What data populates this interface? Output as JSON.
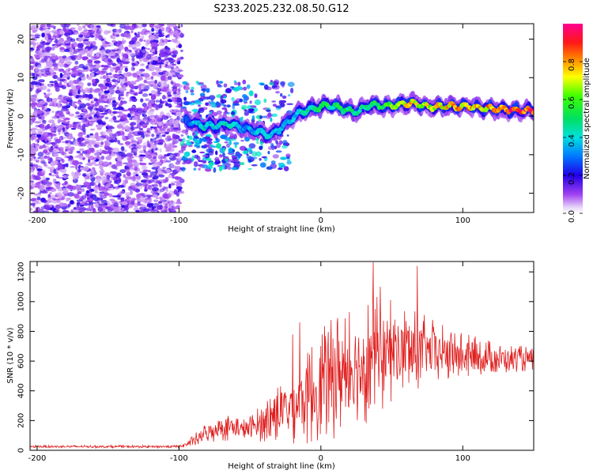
{
  "figure": {
    "title": "S233.2025.232.08.50.G12"
  },
  "chart_data": [
    {
      "type": "heatmap",
      "xlabel": "Height of straight line (km)",
      "ylabel": "Frequency (Hz)",
      "xlim": [
        -205,
        150
      ],
      "ylim": [
        -25,
        24
      ],
      "xticks": [
        -200,
        -100,
        0,
        100
      ],
      "yticks": [
        -20,
        -10,
        0,
        10,
        20
      ],
      "colorbar": {
        "label": "Normalized spectral amplitude",
        "range": [
          0,
          1
        ],
        "ticks": [
          0.0,
          0.2,
          0.4,
          0.6,
          0.8
        ]
      },
      "noise_region": {
        "x": [
          -205,
          -98
        ],
        "y": [
          -25,
          24
        ],
        "amplitude": [
          0.05,
          0.2
        ]
      },
      "transition_region": {
        "x": [
          -98,
          -20
        ],
        "y": [
          -14,
          9
        ],
        "amplitude": [
          0.1,
          0.45
        ]
      },
      "ridge": [
        {
          "x": -95,
          "y": -1,
          "amp": 0.3
        },
        {
          "x": -85,
          "y": -2.5,
          "amp": 0.45
        },
        {
          "x": -75,
          "y": -2.5,
          "amp": 0.45
        },
        {
          "x": -65,
          "y": -2,
          "amp": 0.45
        },
        {
          "x": -55,
          "y": -3,
          "amp": 0.35
        },
        {
          "x": -45,
          "y": -4,
          "amp": 0.4
        },
        {
          "x": -35,
          "y": -5,
          "amp": 0.45
        },
        {
          "x": -25,
          "y": -2,
          "amp": 0.35
        },
        {
          "x": -15,
          "y": 1,
          "amp": 0.45
        },
        {
          "x": -5,
          "y": 2,
          "amp": 0.5
        },
        {
          "x": 5,
          "y": 3,
          "amp": 0.55
        },
        {
          "x": 15,
          "y": 2,
          "amp": 0.55
        },
        {
          "x": 25,
          "y": 1,
          "amp": 0.5
        },
        {
          "x": 35,
          "y": 3,
          "amp": 0.55
        },
        {
          "x": 45,
          "y": 2.5,
          "amp": 0.6
        },
        {
          "x": 55,
          "y": 3,
          "amp": 0.75
        },
        {
          "x": 65,
          "y": 3.5,
          "amp": 0.8
        },
        {
          "x": 75,
          "y": 2.5,
          "amp": 0.75
        },
        {
          "x": 85,
          "y": 2.5,
          "amp": 0.8
        },
        {
          "x": 95,
          "y": 2.5,
          "amp": 0.85
        },
        {
          "x": 105,
          "y": 2.5,
          "amp": 0.85
        },
        {
          "x": 115,
          "y": 2,
          "amp": 0.85
        },
        {
          "x": 125,
          "y": 2,
          "amp": 0.9
        },
        {
          "x": 135,
          "y": 1.5,
          "amp": 0.95
        },
        {
          "x": 145,
          "y": 1.5,
          "amp": 0.95
        },
        {
          "x": 150,
          "y": 1.5,
          "amp": 0.95
        }
      ]
    },
    {
      "type": "line",
      "xlabel": "Height of straight line (km)",
      "ylabel": "SNR (10 * v/v)",
      "xlim": [
        -205,
        150
      ],
      "ylim": [
        0,
        1270
      ],
      "xticks": [
        -200,
        -100,
        0,
        100
      ],
      "yticks": [
        0,
        200,
        400,
        600,
        800,
        1000,
        1200
      ],
      "color": "#e02020",
      "sample_step_km": 0.33,
      "envelope": {
        "x": [
          -205,
          -100,
          -95,
          -90,
          -85,
          -80,
          -75,
          -70,
          -65,
          -60,
          -55,
          -50,
          -45,
          -40,
          -35,
          -30,
          -25,
          -20,
          -15,
          -10,
          -5,
          0,
          5,
          10,
          15,
          20,
          25,
          30,
          35,
          40,
          45,
          50,
          55,
          60,
          65,
          70,
          75,
          80,
          85,
          90,
          95,
          100,
          110,
          120,
          130,
          140,
          150
        ],
        "mean": [
          25,
          25,
          40,
          60,
          90,
          120,
          140,
          160,
          160,
          150,
          140,
          150,
          170,
          200,
          230,
          250,
          280,
          300,
          330,
          360,
          400,
          430,
          460,
          500,
          530,
          560,
          580,
          600,
          620,
          640,
          650,
          660,
          665,
          670,
          670,
          665,
          660,
          655,
          650,
          645,
          640,
          630,
          625,
          620,
          615,
          615,
          615
        ],
        "spread": [
          8,
          10,
          20,
          40,
          60,
          80,
          90,
          100,
          100,
          90,
          80,
          90,
          110,
          150,
          180,
          200,
          220,
          260,
          300,
          330,
          360,
          380,
          400,
          420,
          430,
          450,
          450,
          440,
          420,
          400,
          380,
          350,
          320,
          300,
          280,
          260,
          240,
          220,
          200,
          190,
          180,
          160,
          140,
          120,
          100,
          90,
          80
        ]
      },
      "spikes": [
        {
          "x": -15,
          "y": 860
        },
        {
          "x": -20,
          "y": 780
        },
        {
          "x": 1,
          "y": 780
        },
        {
          "x": 20,
          "y": 930
        },
        {
          "x": 37,
          "y": 1265
        },
        {
          "x": 42,
          "y": 1100
        },
        {
          "x": 49,
          "y": 1010
        },
        {
          "x": 60,
          "y": 870
        },
        {
          "x": 68,
          "y": 1240
        },
        {
          "x": 80,
          "y": 790
        },
        {
          "x": 92,
          "y": 770
        }
      ]
    }
  ]
}
